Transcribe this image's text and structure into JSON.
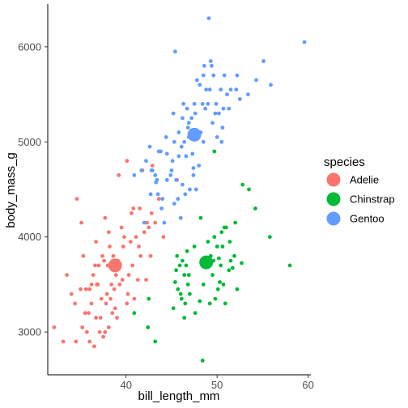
{
  "chart_data": {
    "type": "scatter",
    "title": "",
    "xlabel": "bill_length_mm",
    "ylabel": "body_mass_g",
    "xlim": [
      31.4,
      60.3
    ],
    "ylim": [
      2550,
      6450
    ],
    "xticks": [
      40,
      50,
      60
    ],
    "yticks": [
      3000,
      4000,
      5000,
      6000
    ],
    "grid": false,
    "legend": {
      "title": "species",
      "position": "right"
    },
    "series": [
      {
        "name": "Adelie",
        "color": "#f8766d",
        "mean": {
          "x": 38.8,
          "y": 3700
        },
        "points": [
          [
            32.1,
            3050
          ],
          [
            33.1,
            2900
          ],
          [
            33.5,
            3600
          ],
          [
            34.0,
            3400
          ],
          [
            34.4,
            3300
          ],
          [
            34.5,
            2900
          ],
          [
            34.6,
            4400
          ],
          [
            35.0,
            3450
          ],
          [
            35.1,
            4150
          ],
          [
            35.2,
            3050
          ],
          [
            35.3,
            3800
          ],
          [
            35.5,
            3200
          ],
          [
            35.6,
            3450
          ],
          [
            35.7,
            3000
          ],
          [
            35.9,
            3200
          ],
          [
            36.0,
            2900
          ],
          [
            36.0,
            3450
          ],
          [
            36.2,
            3300
          ],
          [
            36.2,
            3500
          ],
          [
            36.4,
            3600
          ],
          [
            36.5,
            2850
          ],
          [
            36.6,
            3700
          ],
          [
            36.7,
            3150
          ],
          [
            36.8,
            3500
          ],
          [
            36.9,
            3500
          ],
          [
            37.0,
            3700
          ],
          [
            37.1,
            3000
          ],
          [
            37.2,
            3150
          ],
          [
            37.3,
            3350
          ],
          [
            37.4,
            3800
          ],
          [
            37.5,
            2950
          ],
          [
            37.6,
            3750
          ],
          [
            37.7,
            3000
          ],
          [
            37.8,
            3300
          ],
          [
            37.9,
            3400
          ],
          [
            38.0,
            3700
          ],
          [
            38.1,
            3050
          ],
          [
            38.2,
            3900
          ],
          [
            38.3,
            3350
          ],
          [
            38.4,
            3500
          ],
          [
            38.5,
            3200
          ],
          [
            38.6,
            3800
          ],
          [
            38.7,
            3450
          ],
          [
            38.8,
            3250
          ],
          [
            38.9,
            3600
          ],
          [
            39.0,
            3150
          ],
          [
            39.1,
            3750
          ],
          [
            39.2,
            4650
          ],
          [
            39.3,
            3500
          ],
          [
            39.5,
            4100
          ],
          [
            39.6,
            3550
          ],
          [
            39.7,
            3900
          ],
          [
            39.8,
            4000
          ],
          [
            40.1,
            3300
          ],
          [
            40.2,
            3400
          ],
          [
            40.3,
            3600
          ],
          [
            40.5,
            3950
          ],
          [
            40.6,
            4250
          ],
          [
            40.7,
            3700
          ],
          [
            40.8,
            4300
          ],
          [
            40.9,
            3350
          ],
          [
            41.1,
            4000
          ],
          [
            41.3,
            3550
          ],
          [
            41.4,
            3900
          ],
          [
            41.5,
            4300
          ],
          [
            41.6,
            3800
          ],
          [
            41.8,
            4700
          ],
          [
            42.0,
            4050
          ],
          [
            42.2,
            3550
          ],
          [
            42.3,
            4150
          ],
          [
            42.5,
            4100
          ],
          [
            42.7,
            3800
          ],
          [
            42.8,
            4250
          ],
          [
            42.9,
            4750
          ],
          [
            43.2,
            4150
          ],
          [
            43.6,
            4400
          ],
          [
            44.1,
            4000
          ],
          [
            45.6,
            4600
          ],
          [
            46.0,
            4200
          ],
          [
            40.1,
            4800
          ],
          [
            38.1,
            4050
          ],
          [
            36.7,
            3950
          ],
          [
            37.7,
            4200
          ]
        ]
      },
      {
        "name": "Chinstrap",
        "color": "#00ba38",
        "mean": {
          "x": 48.8,
          "y": 3733
        },
        "points": [
          [
            40.9,
            3200
          ],
          [
            42.4,
            3050
          ],
          [
            42.5,
            3350
          ],
          [
            43.2,
            2900
          ],
          [
            45.2,
            3250
          ],
          [
            45.4,
            3525
          ],
          [
            45.5,
            3650
          ],
          [
            45.6,
            3800
          ],
          [
            45.7,
            3450
          ],
          [
            45.9,
            3700
          ],
          [
            46.0,
            3400
          ],
          [
            46.1,
            3350
          ],
          [
            46.2,
            3750
          ],
          [
            46.4,
            3600
          ],
          [
            46.5,
            3300
          ],
          [
            46.6,
            3700
          ],
          [
            46.7,
            3850
          ],
          [
            46.8,
            3500
          ],
          [
            46.9,
            3600
          ],
          [
            47.0,
            3400
          ],
          [
            47.5,
            3900
          ],
          [
            47.6,
            3200
          ],
          [
            48.1,
            3325
          ],
          [
            48.4,
            2700
          ],
          [
            48.5,
            3500
          ],
          [
            48.7,
            3700
          ],
          [
            49.0,
            3950
          ],
          [
            49.2,
            3300
          ],
          [
            49.3,
            3800
          ],
          [
            49.5,
            3600
          ],
          [
            49.6,
            3750
          ],
          [
            49.7,
            4000
          ],
          [
            49.8,
            3350
          ],
          [
            50.0,
            3900
          ],
          [
            50.1,
            3450
          ],
          [
            50.2,
            3775
          ],
          [
            50.3,
            3525
          ],
          [
            50.4,
            3700
          ],
          [
            50.5,
            4050
          ],
          [
            50.6,
            3900
          ],
          [
            50.7,
            3500
          ],
          [
            50.8,
            4100
          ],
          [
            50.9,
            3300
          ],
          [
            51.0,
            4100
          ],
          [
            51.3,
            3650
          ],
          [
            51.4,
            3950
          ],
          [
            51.5,
            3750
          ],
          [
            51.7,
            3675
          ],
          [
            51.9,
            3800
          ],
          [
            52.0,
            4150
          ],
          [
            52.2,
            3450
          ],
          [
            52.7,
            3725
          ],
          [
            52.8,
            4550
          ],
          [
            53.5,
            4500
          ],
          [
            54.2,
            4300
          ],
          [
            55.8,
            4000
          ],
          [
            58.0,
            3700
          ],
          [
            49.7,
            4900
          ],
          [
            48.2,
            4200
          ],
          [
            46.4,
            3150
          ]
        ]
      },
      {
        "name": "Gentoo",
        "color": "#619cff",
        "mean": {
          "x": 47.5,
          "y": 5076
        },
        "points": [
          [
            40.9,
            4650
          ],
          [
            41.7,
            4700
          ],
          [
            42.0,
            4150
          ],
          [
            42.6,
            4950
          ],
          [
            42.7,
            4450
          ],
          [
            42.8,
            4700
          ],
          [
            42.9,
            4700
          ],
          [
            43.2,
            4650
          ],
          [
            43.3,
            4575
          ],
          [
            43.4,
            4600
          ],
          [
            43.5,
            4450
          ],
          [
            43.6,
            4900
          ],
          [
            43.8,
            4900
          ],
          [
            44.0,
            4400
          ],
          [
            44.4,
            5050
          ],
          [
            44.5,
            4600
          ],
          [
            44.9,
            4650
          ],
          [
            45.1,
            4800
          ],
          [
            45.2,
            5300
          ],
          [
            45.3,
            4350
          ],
          [
            45.4,
            5950
          ],
          [
            45.5,
            4600
          ],
          [
            45.7,
            4400
          ],
          [
            45.8,
            5100
          ],
          [
            46.1,
            4950
          ],
          [
            46.2,
            4550
          ],
          [
            46.3,
            5400
          ],
          [
            46.4,
            5000
          ],
          [
            46.5,
            4450
          ],
          [
            46.6,
            4850
          ],
          [
            46.7,
            5350
          ],
          [
            46.8,
            5150
          ],
          [
            46.9,
            5050
          ],
          [
            47.2,
            5250
          ],
          [
            47.3,
            4875
          ],
          [
            47.4,
            4725
          ],
          [
            47.5,
            5400
          ],
          [
            47.6,
            5300
          ],
          [
            47.7,
            4500
          ],
          [
            47.8,
            5650
          ],
          [
            48.1,
            5600
          ],
          [
            48.2,
            5100
          ],
          [
            48.4,
            5400
          ],
          [
            48.5,
            5000
          ],
          [
            48.6,
            5800
          ],
          [
            48.7,
            5350
          ],
          [
            48.8,
            5550
          ],
          [
            49.0,
            5400
          ],
          [
            49.1,
            6300
          ],
          [
            49.2,
            5550
          ],
          [
            49.3,
            5850
          ],
          [
            49.4,
            5800
          ],
          [
            49.5,
            5200
          ],
          [
            49.6,
            5700
          ],
          [
            49.8,
            5300
          ],
          [
            49.9,
            5400
          ],
          [
            50.0,
            5050
          ],
          [
            50.2,
            5300
          ],
          [
            50.4,
            5550
          ],
          [
            50.5,
            5000
          ],
          [
            50.7,
            5350
          ],
          [
            50.8,
            5700
          ],
          [
            51.1,
            5500
          ],
          [
            51.3,
            5350
          ],
          [
            51.5,
            5550
          ],
          [
            52.1,
            5550
          ],
          [
            52.2,
            5700
          ],
          [
            52.5,
            5450
          ],
          [
            53.4,
            5500
          ],
          [
            54.3,
            5650
          ],
          [
            55.1,
            5850
          ],
          [
            55.9,
            5600
          ],
          [
            59.6,
            6050
          ],
          [
            44.5,
            4875
          ],
          [
            45.0,
            4700
          ],
          [
            46.0,
            4200
          ],
          [
            47.0,
            4500
          ],
          [
            48.0,
            4750
          ],
          [
            45.3,
            5000
          ],
          [
            46.9,
            5200
          ],
          [
            43.9,
            4300
          ],
          [
            45.8,
            4850
          ],
          [
            47.4,
            4650
          ],
          [
            44.2,
            4150
          ],
          [
            48.5,
            5700
          ],
          [
            50.6,
            5150
          ],
          [
            42.2,
            4800
          ],
          [
            46.2,
            5250
          ]
        ]
      }
    ]
  }
}
